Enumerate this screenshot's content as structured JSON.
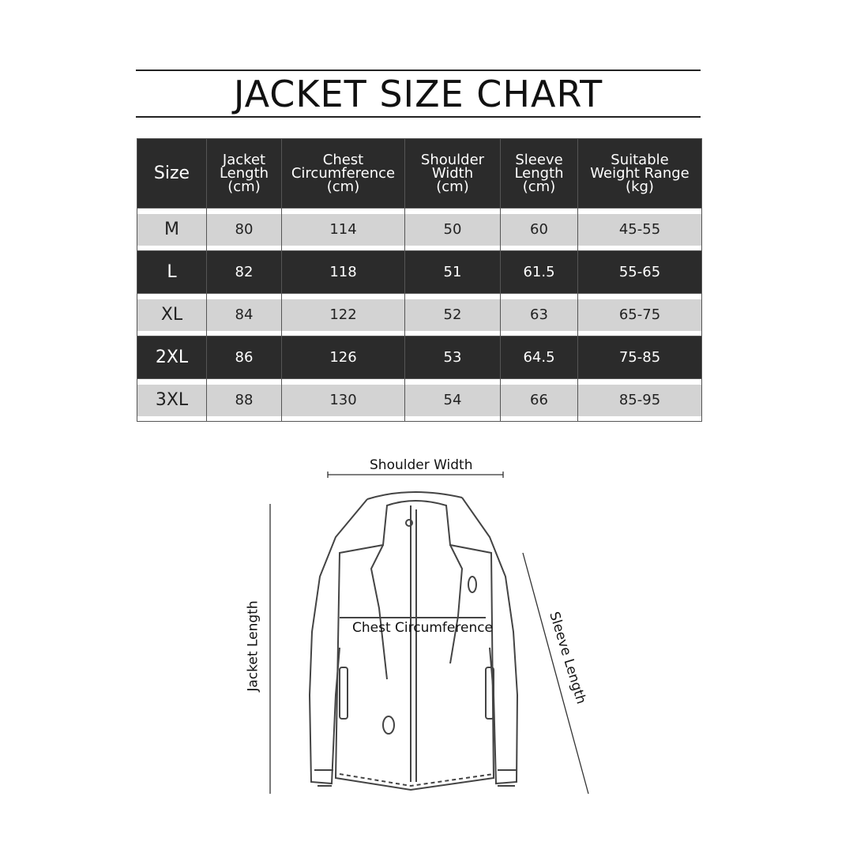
{
  "title": "JACKET SIZE CHART",
  "table": {
    "headers": [
      [
        "Size"
      ],
      [
        "Jacket",
        "Length",
        "(cm)"
      ],
      [
        "Chest",
        "Circumference",
        "(cm)"
      ],
      [
        "Shoulder",
        "Width",
        "(cm)"
      ],
      [
        "Sleeve",
        "Length",
        "(cm)"
      ],
      [
        "Suitable",
        "Weight Range",
        "(kg)"
      ]
    ],
    "rows": [
      [
        "M",
        "80",
        "114",
        "50",
        "60",
        "45-55"
      ],
      [
        "L",
        "82",
        "118",
        "51",
        "61.5",
        "55-65"
      ],
      [
        "XL",
        "84",
        "122",
        "52",
        "63",
        "65-75"
      ],
      [
        "2XL",
        "86",
        "126",
        "53",
        "64.5",
        "75-85"
      ],
      [
        "3XL",
        "88",
        "130",
        "54",
        "66",
        "85-95"
      ]
    ]
  },
  "diagram": {
    "shoulder_width": "Shoulder Width",
    "chest_circumference": "Chest Circumference",
    "jacket_length": "Jacket Length",
    "sleeve_length": "Sleeve Length"
  },
  "colors": {
    "dark_row": "#2b2b2b",
    "light_row": "#d3d3d3"
  }
}
